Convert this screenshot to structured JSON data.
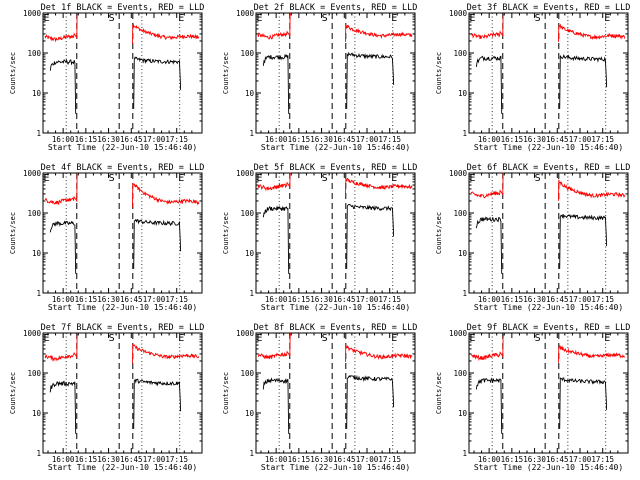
{
  "chart_data": {
    "type": "line",
    "layout": "grid 3x3 small multiples",
    "shared": {
      "ylabel": "Counts/sec",
      "xlabel": "Start Time (22-Jun-10 15:46:40)",
      "yscale": "log",
      "ylim": [
        1,
        1000
      ],
      "y_tick_labels": [
        "1",
        "10",
        "100",
        "1000"
      ],
      "x_tick_labels": [
        "16:00",
        "16:15",
        "16:30",
        "16:45",
        "17:00",
        "17:15"
      ],
      "x_tick_minutes": [
        0,
        15,
        30,
        45,
        60,
        75
      ],
      "xlim_minutes": [
        -13.3,
        91.7
      ],
      "series_colors": {
        "events": "#000000",
        "lld": "#ff0000"
      },
      "dashed_lines_minutes": [
        9,
        37,
        46
      ],
      "dotted_lines_minutes": [
        2,
        52,
        77
      ],
      "markers": [
        {
          "label": "E",
          "minute": -11
        },
        {
          "label": "S",
          "minute": 32
        },
        {
          "label": "E",
          "minute": 78
        }
      ],
      "x_ticks": [
        0,
        15,
        30,
        45,
        60,
        75
      ]
    },
    "panels": [
      {
        "title": "Det 1f BLACK = Events, RED = LLD",
        "lld_level": 240,
        "events_level": 60,
        "lld_peak": 550,
        "lld_end": 250,
        "events_end": 60
      },
      {
        "title": "Det 2f BLACK = Events, RED = LLD",
        "lld_level": 270,
        "events_level": 80,
        "lld_peak": 520,
        "lld_end": 280,
        "events_end": 80
      },
      {
        "title": "Det 3f BLACK = Events, RED = LLD",
        "lld_level": 270,
        "events_level": 75,
        "lld_peak": 520,
        "lld_end": 260,
        "events_end": 70
      },
      {
        "title": "Det 4f BLACK = Events, RED = LLD",
        "lld_level": 200,
        "events_level": 55,
        "lld_peak": 600,
        "lld_end": 190,
        "events_end": 55
      },
      {
        "title": "Det 5f BLACK = Events, RED = LLD",
        "lld_level": 450,
        "events_level": 130,
        "lld_peak": 750,
        "lld_end": 450,
        "events_end": 130
      },
      {
        "title": "Det 6f BLACK = Events, RED = LLD",
        "lld_level": 290,
        "events_level": 70,
        "lld_peak": 650,
        "lld_end": 280,
        "events_end": 75
      },
      {
        "title": "Det 7f BLACK = Events, RED = LLD",
        "lld_level": 250,
        "events_level": 55,
        "lld_peak": 520,
        "lld_end": 260,
        "events_end": 55
      },
      {
        "title": "Det 8f BLACK = Events, RED = LLD",
        "lld_level": 270,
        "events_level": 65,
        "lld_peak": 500,
        "lld_end": 260,
        "events_end": 70
      },
      {
        "title": "Det 9f BLACK = Events, RED = LLD",
        "lld_level": 260,
        "events_level": 65,
        "lld_peak": 480,
        "lld_end": 270,
        "events_end": 60
      }
    ]
  }
}
